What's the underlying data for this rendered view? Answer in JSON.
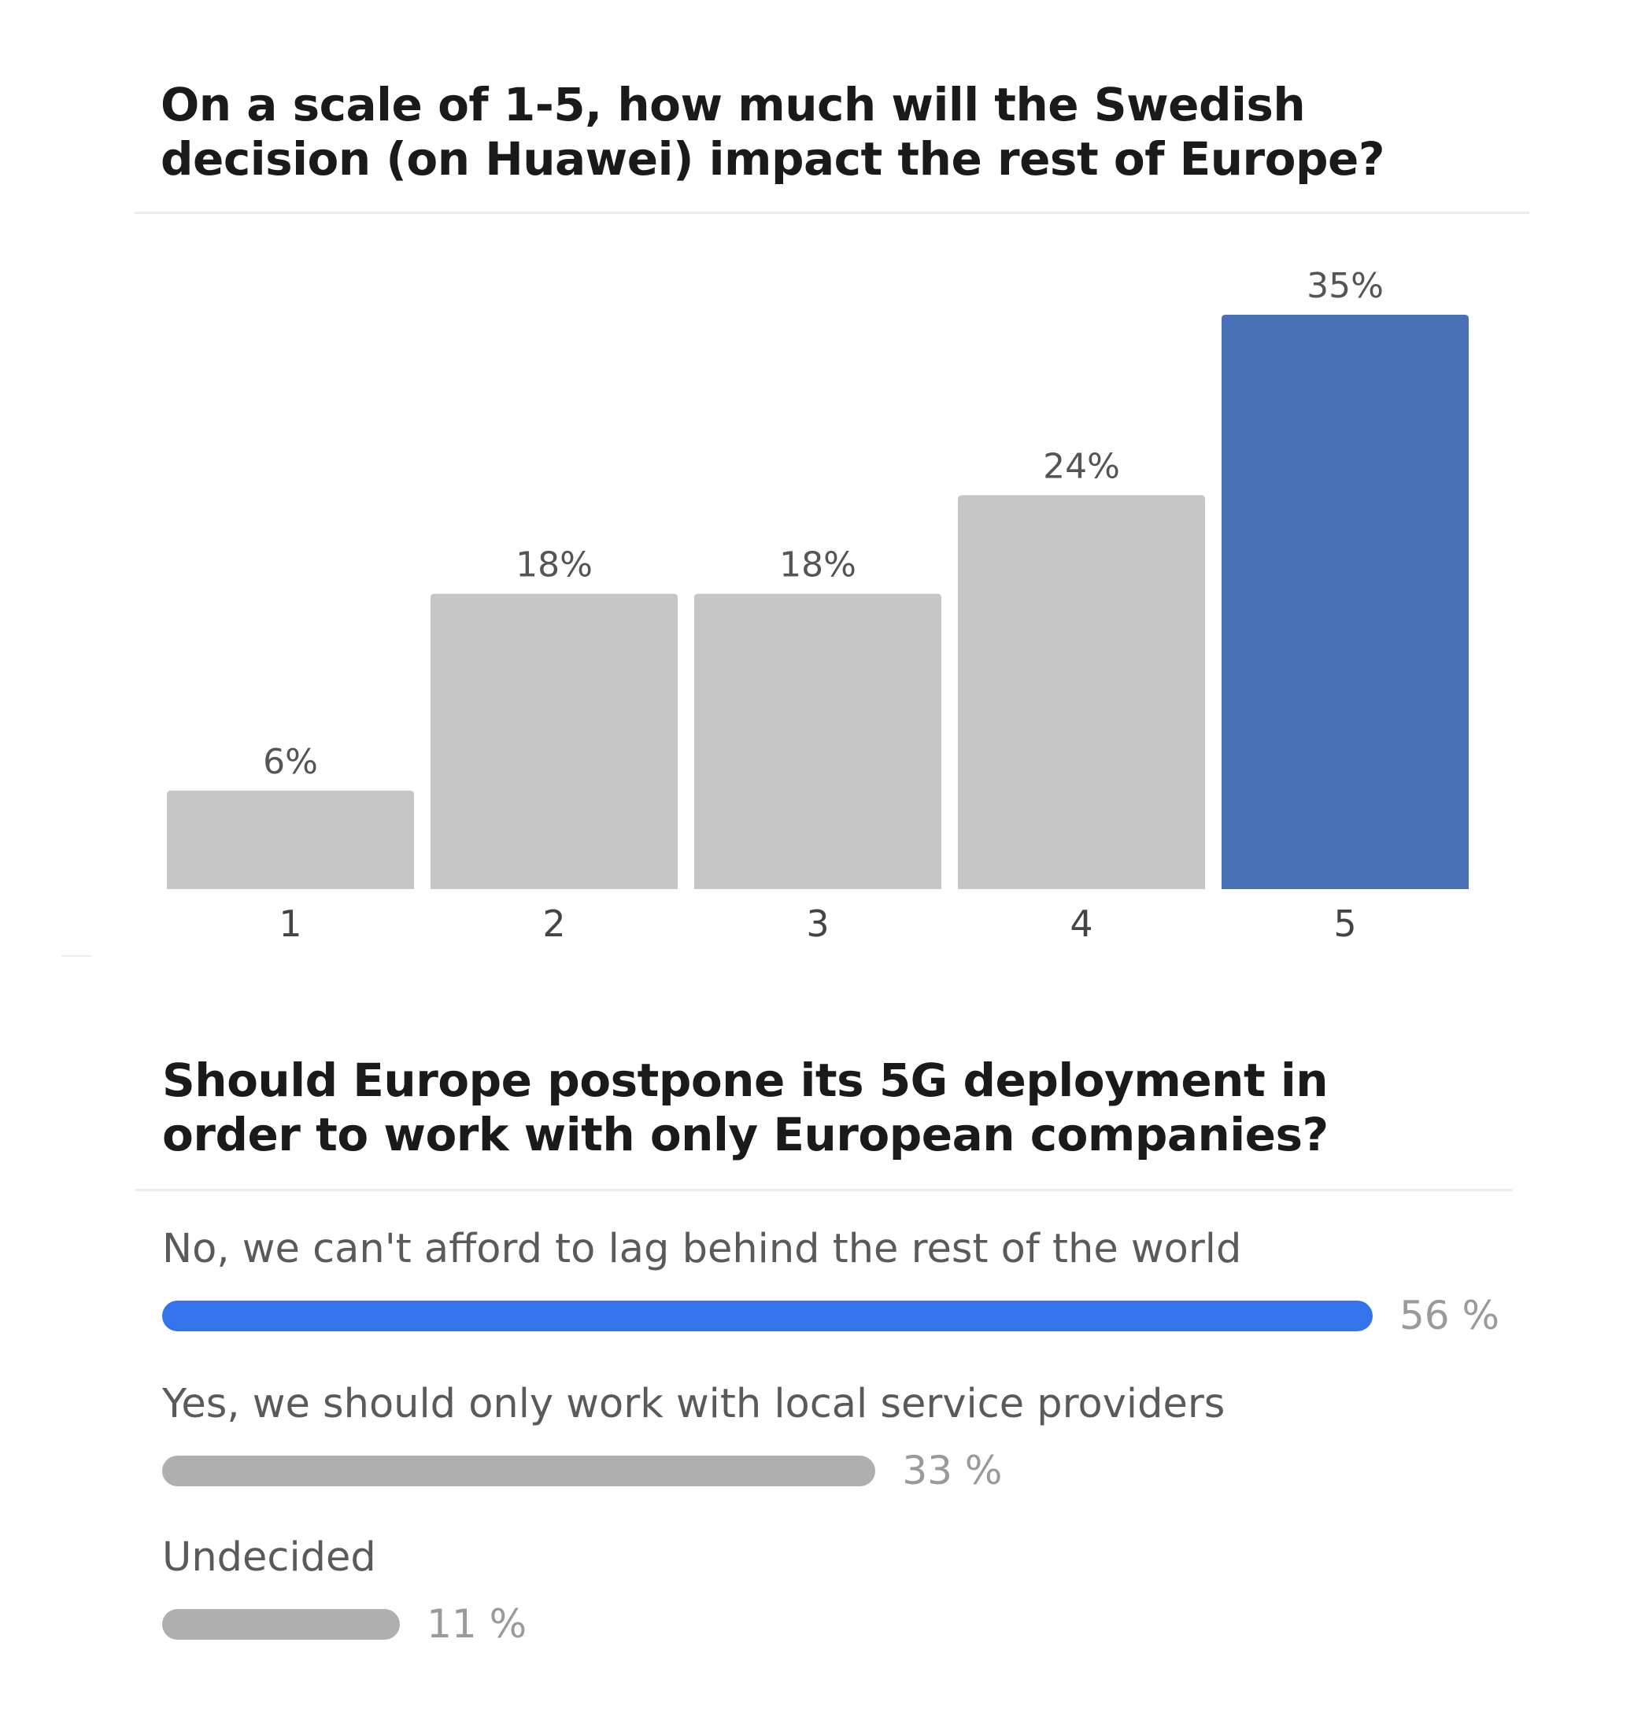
{
  "chart_data": [
    {
      "type": "bar",
      "title": "On a scale of 1-5, how much will the Swedish\ndecision (on Huawei) impact the rest of Europe?",
      "categories": [
        "1",
        "2",
        "3",
        "4",
        "5"
      ],
      "values": [
        6,
        18,
        18,
        24,
        35
      ],
      "value_labels": [
        "6%",
        "18%",
        "18%",
        "24%",
        "35%"
      ],
      "ylim": [
        0,
        35
      ],
      "grid": false,
      "colors": {
        "default": "#c5c6c5",
        "highlight": "#4870b6"
      },
      "highlight_index": 4
    },
    {
      "type": "bar",
      "orientation": "horizontal",
      "title": "Should Europe postpone its 5G deployment in\norder to work with only European companies?",
      "categories": [
        "No, we can't afford to lag behind the rest of the world",
        "Yes, we should only work with local service providers",
        "Undecided"
      ],
      "values": [
        56,
        33,
        11
      ],
      "value_labels": [
        "56 %",
        "33 %",
        "11 %"
      ],
      "grid": false,
      "colors": {
        "default": "#afafaf",
        "highlight": "#3374ec"
      },
      "highlight_index": 0
    }
  ]
}
